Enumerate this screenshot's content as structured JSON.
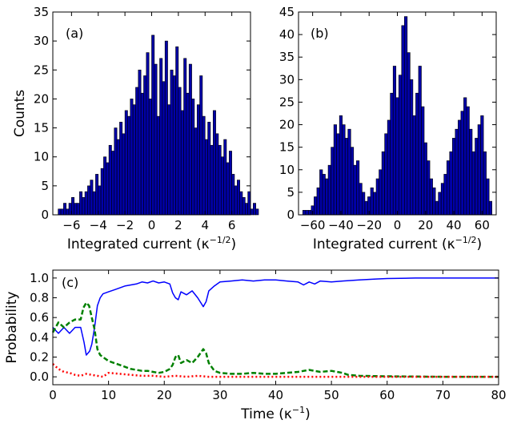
{
  "chart_data": [
    {
      "type": "bar",
      "panel_label": "(a)",
      "xlabel": "Integrated current (κ",
      "xlabel_sup": "−1/2",
      "xlabel_close": ")",
      "ylabel": "Counts",
      "xlim": [
        -7.4,
        7.4
      ],
      "ylim": [
        0,
        35
      ],
      "xticks": [
        -6,
        -4,
        -2,
        0,
        2,
        4,
        6
      ],
      "xtick_labels": [
        "−6",
        "−4",
        "−2",
        "0",
        "2",
        "4",
        "6"
      ],
      "yticks": [
        0,
        5,
        10,
        15,
        20,
        25,
        30,
        35
      ],
      "ytick_labels": [
        "0",
        "5",
        "10",
        "15",
        "20",
        "25",
        "30",
        "35"
      ],
      "bin_start": -7.0,
      "bin_width": 0.2,
      "values": [
        1,
        1,
        2,
        1,
        2,
        3,
        2,
        2,
        4,
        3,
        4,
        5,
        6,
        4,
        7,
        5,
        8,
        10,
        9,
        12,
        11,
        15,
        13,
        16,
        14,
        18,
        17,
        20,
        19,
        22,
        25,
        21,
        24,
        28,
        20,
        31,
        26,
        17,
        27,
        23,
        30,
        19,
        25,
        24,
        29,
        22,
        18,
        27,
        21,
        26,
        20,
        15,
        19,
        24,
        17,
        13,
        16,
        12,
        18,
        14,
        12,
        10,
        13,
        9,
        11,
        7,
        5,
        6,
        4,
        3,
        2,
        4,
        1,
        2,
        1
      ]
    },
    {
      "type": "bar",
      "panel_label": "(b)",
      "xlabel": "Integrated current (κ",
      "xlabel_sup": "−1/2",
      "xlabel_close": ")",
      "ylabel": "",
      "xlim": [
        -70,
        70
      ],
      "ylim": [
        0,
        45
      ],
      "xticks": [
        -60,
        -40,
        -20,
        0,
        20,
        40,
        60
      ],
      "xtick_labels": [
        "−60",
        "−40",
        "−20",
        "0",
        "20",
        "40",
        "60"
      ],
      "yticks": [
        0,
        5,
        10,
        15,
        20,
        25,
        30,
        35,
        40,
        45
      ],
      "ytick_labels": [
        "0",
        "5",
        "10",
        "15",
        "20",
        "25",
        "30",
        "35",
        "40",
        "45"
      ],
      "bin_start": -67,
      "bin_width": 2,
      "values": [
        1,
        1,
        1,
        2,
        4,
        6,
        10,
        9,
        8,
        11,
        15,
        20,
        18,
        22,
        20,
        17,
        19,
        15,
        11,
        12,
        7,
        5,
        3,
        4,
        6,
        5,
        8,
        10,
        14,
        18,
        21,
        27,
        33,
        26,
        31,
        42,
        44,
        36,
        30,
        22,
        27,
        33,
        24,
        16,
        12,
        8,
        6,
        3,
        5,
        7,
        9,
        12,
        14,
        17,
        19,
        21,
        23,
        26,
        24,
        19,
        14,
        17,
        20,
        22,
        14,
        8,
        3
      ]
    },
    {
      "type": "line",
      "panel_label": "(c)",
      "xlabel": "Time (κ",
      "xlabel_sup": "−1",
      "xlabel_close": ")",
      "ylabel": "Probability",
      "xlim": [
        0,
        80
      ],
      "ylim": [
        -0.08,
        1.08
      ],
      "xticks": [
        0,
        10,
        20,
        30,
        40,
        50,
        60,
        70,
        80
      ],
      "xtick_labels": [
        "0",
        "10",
        "20",
        "30",
        "40",
        "50",
        "60",
        "70",
        "80"
      ],
      "yticks": [
        0.0,
        0.2,
        0.4,
        0.6,
        0.8,
        1.0
      ],
      "ytick_labels": [
        "0.0",
        "0.2",
        "0.4",
        "0.6",
        "0.8",
        "1.0"
      ],
      "series": [
        {
          "color": "#0000ff",
          "style": "solid",
          "x": [
            0,
            1,
            2,
            3,
            4,
            5,
            5.6,
            6,
            6.6,
            7,
            7.5,
            8,
            8.5,
            9,
            10,
            11,
            12,
            13,
            14,
            15,
            16,
            17,
            18,
            19,
            20,
            21,
            21.5,
            22,
            22.5,
            23,
            24,
            25,
            26,
            27,
            27.5,
            28,
            29,
            30,
            32,
            34,
            36,
            38,
            40,
            42,
            44,
            45,
            46,
            47,
            48,
            50,
            52,
            55,
            58,
            60,
            65,
            70,
            75,
            80
          ],
          "y": [
            0.5,
            0.44,
            0.5,
            0.44,
            0.5,
            0.5,
            0.35,
            0.22,
            0.26,
            0.33,
            0.5,
            0.72,
            0.8,
            0.84,
            0.86,
            0.88,
            0.9,
            0.92,
            0.93,
            0.94,
            0.96,
            0.95,
            0.97,
            0.95,
            0.96,
            0.94,
            0.85,
            0.8,
            0.78,
            0.86,
            0.83,
            0.87,
            0.8,
            0.71,
            0.76,
            0.87,
            0.92,
            0.96,
            0.97,
            0.98,
            0.97,
            0.98,
            0.98,
            0.97,
            0.96,
            0.93,
            0.96,
            0.94,
            0.97,
            0.96,
            0.97,
            0.98,
            0.99,
            0.995,
            1.0,
            1.0,
            1.0,
            1.0
          ]
        },
        {
          "color": "#008000",
          "style": "dashed",
          "x": [
            0,
            1,
            2,
            3,
            4,
            5,
            5.5,
            6,
            6.5,
            7,
            7.5,
            8,
            8.5,
            9,
            10,
            11,
            12,
            13,
            14,
            15,
            16,
            17,
            18,
            19,
            20,
            21,
            21.5,
            22,
            22.5,
            23,
            24,
            25,
            26,
            27,
            27.5,
            28,
            29,
            30,
            32,
            34,
            36,
            38,
            40,
            42,
            44,
            46,
            48,
            50,
            52,
            53,
            55,
            60,
            65,
            70,
            75,
            80
          ],
          "y": [
            0.45,
            0.55,
            0.5,
            0.55,
            0.58,
            0.58,
            0.7,
            0.75,
            0.72,
            0.6,
            0.48,
            0.28,
            0.22,
            0.2,
            0.16,
            0.14,
            0.12,
            0.1,
            0.08,
            0.07,
            0.06,
            0.06,
            0.05,
            0.04,
            0.05,
            0.08,
            0.12,
            0.2,
            0.22,
            0.14,
            0.17,
            0.14,
            0.2,
            0.28,
            0.24,
            0.14,
            0.06,
            0.04,
            0.03,
            0.03,
            0.04,
            0.03,
            0.03,
            0.04,
            0.05,
            0.07,
            0.05,
            0.06,
            0.04,
            0.02,
            0.01,
            0.005,
            0.003,
            0.0,
            0.0,
            0.0
          ]
        },
        {
          "color": "#ff0000",
          "style": "dotted",
          "x": [
            0,
            1,
            2,
            3,
            4,
            5,
            6,
            7,
            8,
            9,
            10,
            12,
            14,
            16,
            18,
            20,
            22,
            24,
            26,
            28,
            30,
            35,
            40,
            50,
            60,
            70,
            80
          ],
          "y": [
            0.13,
            0.08,
            0.05,
            0.04,
            0.02,
            0.01,
            0.03,
            0.02,
            0.01,
            0.0,
            0.04,
            0.03,
            0.02,
            0.01,
            0.01,
            0.0,
            0.01,
            0.0,
            0.01,
            0.0,
            0.0,
            0.0,
            0.0,
            0.0,
            0.0,
            0.0,
            0.0
          ]
        }
      ]
    }
  ]
}
